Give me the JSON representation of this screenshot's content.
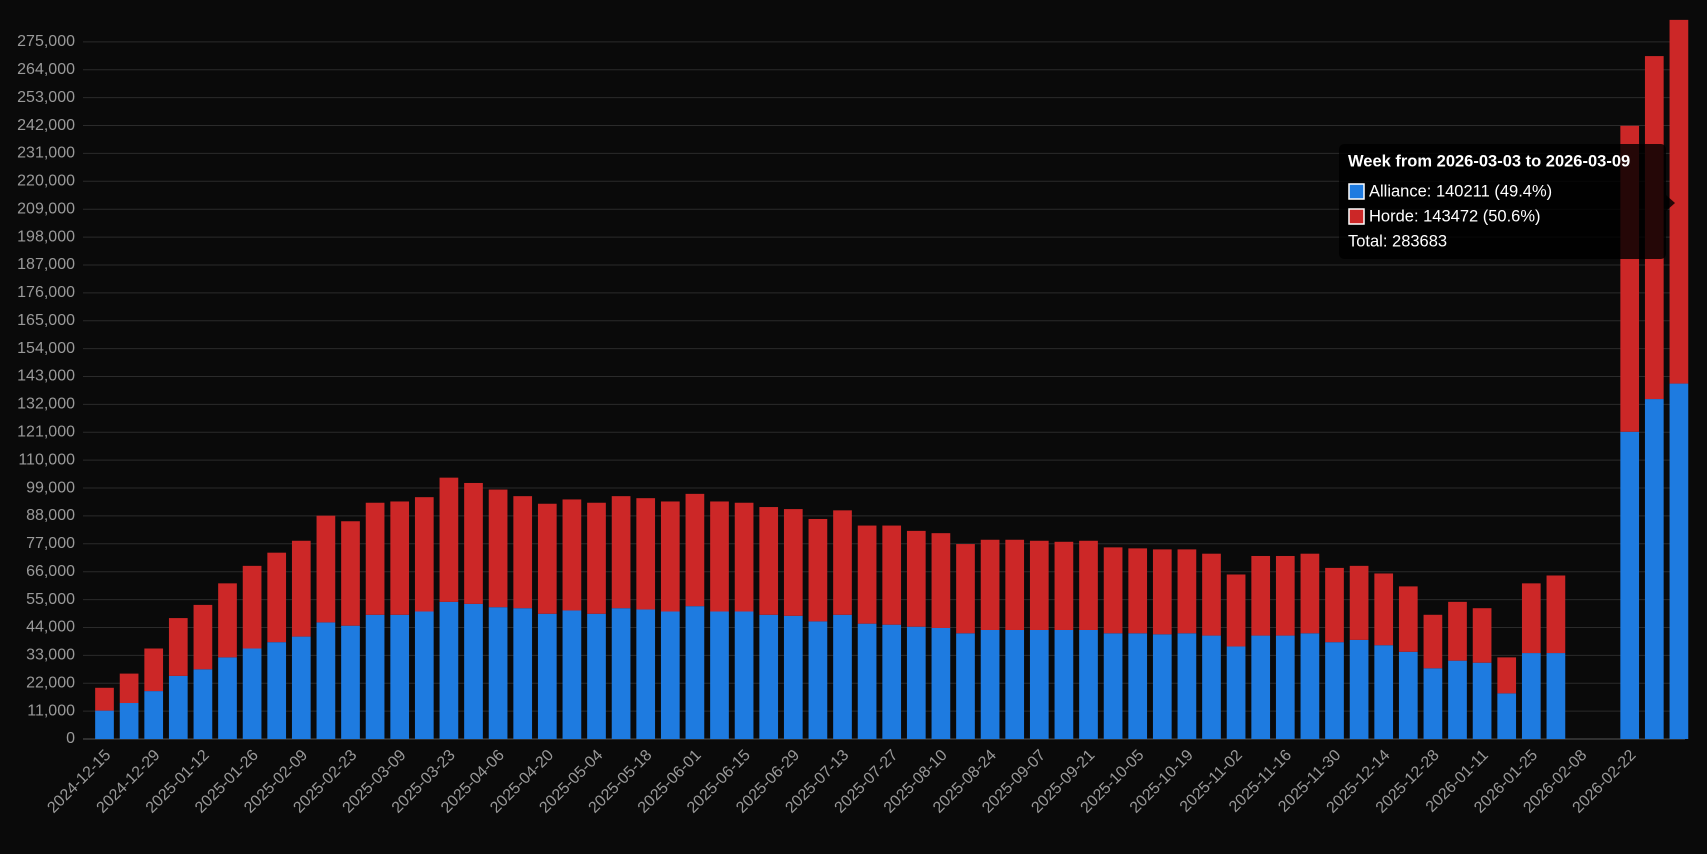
{
  "chart_data": {
    "type": "stacked_bar",
    "categories": [
      "2024-12-15",
      null,
      "2024-12-29",
      null,
      "2025-01-12",
      null,
      "2025-01-26",
      null,
      "2025-02-09",
      null,
      "2025-02-23",
      null,
      "2025-03-09",
      null,
      "2025-03-23",
      null,
      "2025-04-06",
      null,
      "2025-04-20",
      null,
      "2025-05-04",
      null,
      "2025-05-18",
      null,
      "2025-06-01",
      null,
      "2025-06-15",
      null,
      "2025-06-29",
      null,
      "2025-07-13",
      null,
      "2025-07-27",
      null,
      "2025-08-10",
      null,
      "2025-08-24",
      null,
      "2025-09-07",
      null,
      "2025-09-21",
      null,
      "2025-10-05",
      null,
      "2025-10-19",
      null,
      "2025-11-02",
      null,
      "2025-11-16",
      null,
      "2025-11-30",
      null,
      "2025-12-14",
      null,
      "2025-12-28",
      null,
      "2026-01-11",
      null,
      "2026-01-25",
      null,
      "2026-02-08",
      null,
      "2026-02-22",
      null,
      null
    ],
    "series": [
      {
        "color": "#1e7be0",
        "values": [
          11200,
          14200,
          18900,
          24900,
          27500,
          32200,
          35700,
          38200,
          40400,
          46000,
          44700,
          49000,
          49000,
          50300,
          54100,
          53300,
          52000,
          51600,
          49400,
          50700,
          49400,
          51600,
          51100,
          50300,
          52400,
          50300,
          50300,
          49000,
          48600,
          46400,
          49000,
          45500,
          45100,
          44300,
          43800,
          41700,
          43000,
          43000,
          43000,
          43000,
          43000,
          41700,
          41700,
          41300,
          41700,
          40800,
          36500,
          40800,
          40800,
          41700,
          38200,
          39100,
          37000,
          34400,
          27900,
          30900,
          30100,
          18000,
          33900,
          33900,
          null,
          null,
          121200,
          134100,
          140211
        ]
      },
      {
        "color": "#cc2727",
        "values": [
          9000,
          11600,
          16800,
          22800,
          25400,
          29200,
          32600,
          35300,
          37800,
          42100,
          41200,
          44200,
          44700,
          45100,
          49000,
          47700,
          46400,
          44200,
          43400,
          43800,
          43800,
          44200,
          43900,
          43400,
          44300,
          43400,
          42900,
          42500,
          42100,
          40400,
          41200,
          38700,
          39100,
          37800,
          37400,
          35200,
          35600,
          35600,
          35200,
          34800,
          35200,
          33900,
          33500,
          33500,
          33100,
          32300,
          28400,
          31400,
          31400,
          31400,
          29300,
          29200,
          28300,
          25800,
          21100,
          23200,
          21500,
          14200,
          27500,
          30600,
          null,
          null,
          120700,
          135300,
          143472
        ]
      }
    ],
    "ylim": [
      0,
      286000
    ],
    "yticks": [
      0,
      {
        "value": 11000,
        "label": "11,000"
      },
      {
        "value": 22000,
        "label": "22,000"
      },
      {
        "value": 33000,
        "label": "33,000"
      },
      {
        "value": 44000,
        "label": "44,000"
      },
      {
        "value": 55000,
        "label": "55,000"
      },
      {
        "value": 66000,
        "label": "66,000"
      },
      {
        "value": 77000,
        "label": "77,000"
      },
      {
        "value": 88000,
        "label": "88,000"
      },
      {
        "value": 99000,
        "label": "99,000"
      },
      {
        "value": 110000,
        "label": "110,000"
      },
      {
        "value": 121000,
        "label": "121,000"
      },
      {
        "value": 132000,
        "label": "132,000"
      },
      {
        "value": 143000,
        "label": "143,000"
      },
      {
        "value": 154000,
        "label": "154,000"
      },
      {
        "value": 165000,
        "label": "165,000"
      },
      {
        "value": 176000,
        "label": "176,000"
      },
      {
        "value": 187000,
        "label": "187,000"
      },
      {
        "value": 198000,
        "label": "198,000"
      },
      {
        "value": 209000,
        "label": "209,000"
      },
      {
        "value": 220000,
        "label": "220,000"
      },
      {
        "value": 231000,
        "label": "231,000"
      },
      {
        "value": 242000,
        "label": "242,000"
      },
      {
        "value": 253000,
        "label": "253,000"
      },
      {
        "value": 264000,
        "label": "264,000"
      },
      {
        "value": 275000,
        "label": "275,000"
      }
    ],
    "grid": true,
    "tooltip": {
      "title": "Week from 2026-03-03 to 2026-03-09",
      "lines": [
        "Alliance: 140211 (49.4%)",
        "Horde: 143472 (50.6%)",
        "Total: 283683"
      ]
    }
  }
}
